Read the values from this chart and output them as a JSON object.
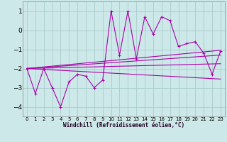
{
  "xlabel": "Windchill (Refroidissement éolien,°C)",
  "background_color": "#cce8e8",
  "line_color": "#aa00aa",
  "grid_color": "#aacccc",
  "xlim": [
    -0.5,
    23.5
  ],
  "ylim": [
    -4.5,
    1.5
  ],
  "yticks": [
    -4,
    -3,
    -2,
    -1,
    0,
    1
  ],
  "xticks": [
    0,
    1,
    2,
    3,
    4,
    5,
    6,
    7,
    8,
    9,
    10,
    11,
    12,
    13,
    14,
    15,
    16,
    17,
    18,
    19,
    20,
    21,
    22,
    23
  ],
  "main_data_x": [
    0,
    1,
    2,
    3,
    4,
    5,
    6,
    7,
    8,
    9,
    10,
    11,
    12,
    13,
    14,
    15,
    16,
    17,
    18,
    19,
    20,
    21,
    22,
    23
  ],
  "main_data_y": [
    -2.0,
    -3.3,
    -2.0,
    -3.0,
    -4.0,
    -2.7,
    -2.3,
    -2.4,
    -3.0,
    -2.6,
    1.0,
    -1.3,
    1.0,
    -1.5,
    0.7,
    -0.2,
    0.7,
    0.5,
    -0.85,
    -0.7,
    -0.6,
    -1.2,
    -2.3,
    -1.1
  ],
  "envelope_lines": [
    {
      "x": [
        0,
        23
      ],
      "y": [
        -2.0,
        -1.05
      ]
    },
    {
      "x": [
        0,
        23
      ],
      "y": [
        -2.0,
        -1.3
      ]
    },
    {
      "x": [
        0,
        23
      ],
      "y": [
        -2.0,
        -1.75
      ]
    },
    {
      "x": [
        0,
        23
      ],
      "y": [
        -2.0,
        -2.55
      ]
    }
  ]
}
